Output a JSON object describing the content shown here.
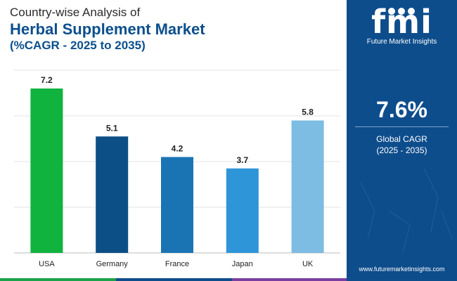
{
  "title": {
    "line1": "Country-wise Analysis of",
    "line2": "Herbal Supplement Market",
    "line3": "(%CAGR - 2025 to 2035)"
  },
  "chart_data": {
    "type": "bar",
    "categories": [
      "USA",
      "Germany",
      "France",
      "Japan",
      "UK"
    ],
    "values": [
      7.2,
      5.1,
      4.2,
      3.7,
      5.8
    ],
    "colors": [
      "#0fb33d",
      "#0b4f86",
      "#1a74b4",
      "#2f95d9",
      "#7dbce3"
    ],
    "ylim": [
      0,
      8
    ],
    "grid": true,
    "xlabel": "",
    "ylabel": ""
  },
  "summary": {
    "value": "7.6%",
    "label_line1": "Global CAGR",
    "label_line2": "(2025 - 2035)"
  },
  "brand": {
    "logo_mark": "fmi",
    "name": "Future Market Insights",
    "website": "www.futuremarketinsights.com"
  },
  "colors": {
    "panel": "#0e4d8c",
    "title_accent": "#0b4f8c",
    "stripe": [
      "#1aa34a",
      "#0e4d8c",
      "#7a3fa0",
      "#0e4d8c"
    ]
  }
}
